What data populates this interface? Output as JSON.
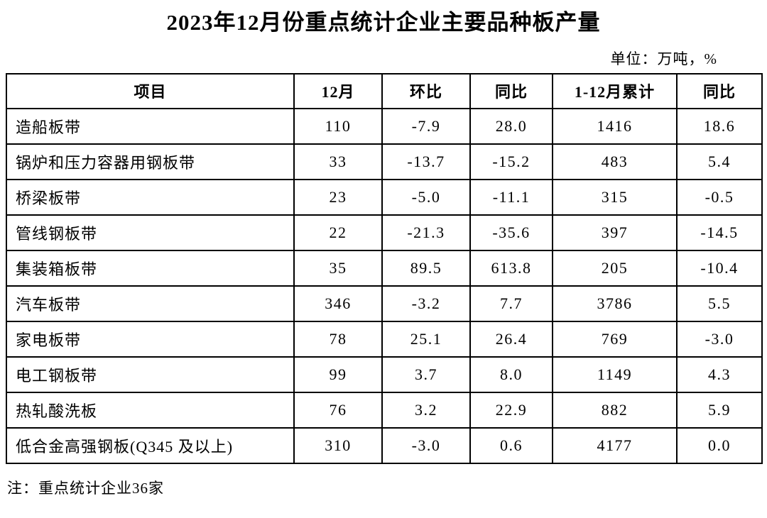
{
  "page": {
    "title": "2023年12月份重点统计企业主要品种板产量",
    "unit_label": "单位：万吨，%",
    "note": "注：重点统计企业36家"
  },
  "table": {
    "columns": [
      "项目",
      "12月",
      "环比",
      "同比",
      "1-12月累计",
      "同比"
    ],
    "rows": [
      [
        "造船板带",
        "110",
        "-7.9",
        "28.0",
        "1416",
        "18.6"
      ],
      [
        "锅炉和压力容器用钢板带",
        "33",
        "-13.7",
        "-15.2",
        "483",
        "5.4"
      ],
      [
        "桥梁板带",
        "23",
        "-5.0",
        "-11.1",
        "315",
        "-0.5"
      ],
      [
        "管线钢板带",
        "22",
        "-21.3",
        "-35.6",
        "397",
        "-14.5"
      ],
      [
        "集装箱板带",
        "35",
        "89.5",
        "613.8",
        "205",
        "-10.4"
      ],
      [
        "汽车板带",
        "346",
        "-3.2",
        "7.7",
        "3786",
        "5.5"
      ],
      [
        "家电板带",
        "78",
        "25.1",
        "26.4",
        "769",
        "-3.0"
      ],
      [
        "电工钢板带",
        "99",
        "3.7",
        "8.0",
        "1149",
        "4.3"
      ],
      [
        "热轧酸洗板",
        "76",
        "3.2",
        "22.9",
        "882",
        "5.9"
      ],
      [
        "低合金高强钢板(Q345 及以上)",
        "310",
        "-3.0",
        "0.6",
        "4177",
        "0.0"
      ]
    ]
  },
  "chart_data": {
    "type": "table",
    "title": "2023年12月份重点统计企业主要品种板产量",
    "unit": "万吨，%",
    "columns": [
      "项目",
      "12月",
      "环比",
      "同比",
      "1-12月累计",
      "同比"
    ],
    "rows": [
      {
        "item": "造船板带",
        "dec_output": 110,
        "mom_pct": -7.9,
        "yoy_pct": 28.0,
        "jan_dec_cumulative": 1416,
        "cumulative_yoy_pct": 18.6
      },
      {
        "item": "锅炉和压力容器用钢板带",
        "dec_output": 33,
        "mom_pct": -13.7,
        "yoy_pct": -15.2,
        "jan_dec_cumulative": 483,
        "cumulative_yoy_pct": 5.4
      },
      {
        "item": "桥梁板带",
        "dec_output": 23,
        "mom_pct": -5.0,
        "yoy_pct": -11.1,
        "jan_dec_cumulative": 315,
        "cumulative_yoy_pct": -0.5
      },
      {
        "item": "管线钢板带",
        "dec_output": 22,
        "mom_pct": -21.3,
        "yoy_pct": -35.6,
        "jan_dec_cumulative": 397,
        "cumulative_yoy_pct": -14.5
      },
      {
        "item": "集装箱板带",
        "dec_output": 35,
        "mom_pct": 89.5,
        "yoy_pct": 613.8,
        "jan_dec_cumulative": 205,
        "cumulative_yoy_pct": -10.4
      },
      {
        "item": "汽车板带",
        "dec_output": 346,
        "mom_pct": -3.2,
        "yoy_pct": 7.7,
        "jan_dec_cumulative": 3786,
        "cumulative_yoy_pct": 5.5
      },
      {
        "item": "家电板带",
        "dec_output": 78,
        "mom_pct": 25.1,
        "yoy_pct": 26.4,
        "jan_dec_cumulative": 769,
        "cumulative_yoy_pct": -3.0
      },
      {
        "item": "电工钢板带",
        "dec_output": 99,
        "mom_pct": 3.7,
        "yoy_pct": 8.0,
        "jan_dec_cumulative": 1149,
        "cumulative_yoy_pct": 4.3
      },
      {
        "item": "热轧酸洗板",
        "dec_output": 76,
        "mom_pct": 3.2,
        "yoy_pct": 22.9,
        "jan_dec_cumulative": 882,
        "cumulative_yoy_pct": 5.9
      },
      {
        "item": "低合金高强钢板(Q345 及以上)",
        "dec_output": 310,
        "mom_pct": -3.0,
        "yoy_pct": 0.6,
        "jan_dec_cumulative": 4177,
        "cumulative_yoy_pct": 0.0
      }
    ],
    "note": "注：重点统计企业36家"
  }
}
